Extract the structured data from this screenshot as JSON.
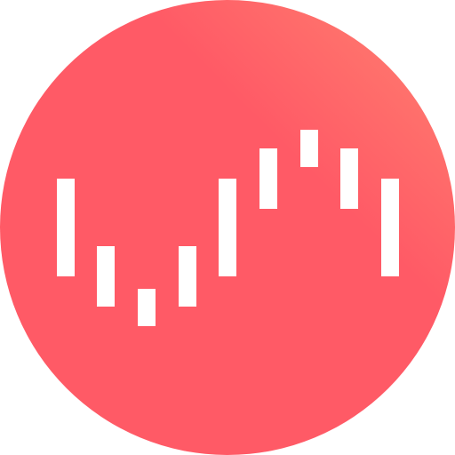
{
  "icon": {
    "name": "waveform-bars-icon",
    "background_shape": "circle",
    "colors": {
      "gradient_start": "#FF8270",
      "gradient_end": "#FF5A66",
      "bar_fill": "#FFFFFF"
    },
    "bar_count": 9
  }
}
